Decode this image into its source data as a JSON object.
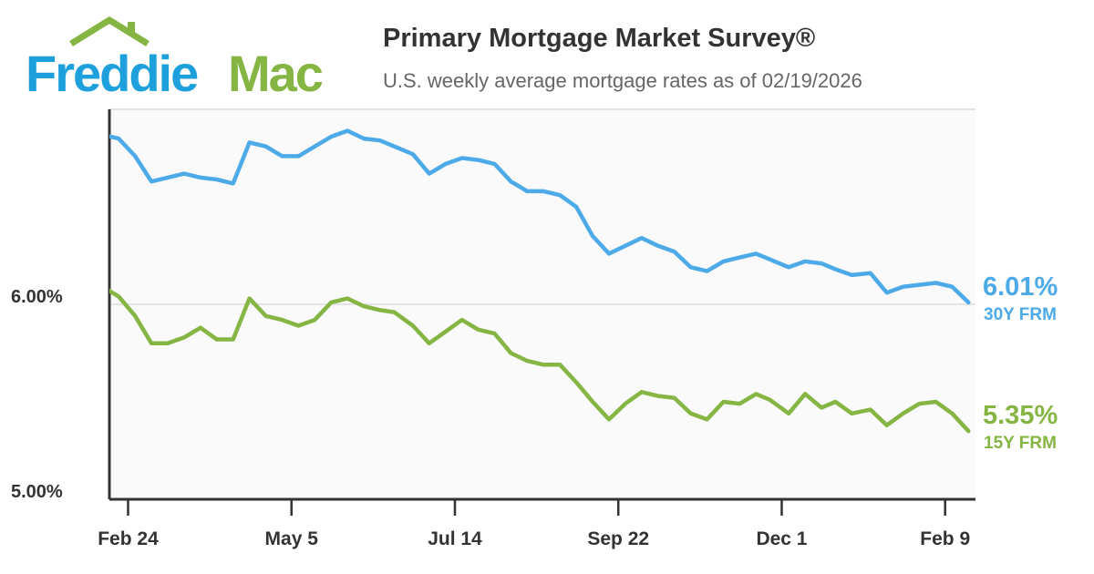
{
  "logo": {
    "text_part1": "Freddie",
    "text_part2": "Mac"
  },
  "header": {
    "title": "Primary Mortgage Market Survey®",
    "subtitle": "U.S. weekly average mortgage rates as of 02/19/2026"
  },
  "chart_data": {
    "type": "line",
    "title": "Primary Mortgage Market Survey®",
    "subtitle": "U.S. weekly average mortgage rates as of 02/19/2026",
    "xlim": [
      "2025-02-16",
      "2026-02-22"
    ],
    "ylim": [
      5.0,
      7.0
    ],
    "yticks": [
      {
        "value": 5.0,
        "label": "5.00%"
      },
      {
        "value": 6.0,
        "label": "6.00%"
      }
    ],
    "xticks": [
      {
        "date": "2025-02-24",
        "label": "Feb 24"
      },
      {
        "date": "2025-05-05",
        "label": "May 5"
      },
      {
        "date": "2025-07-14",
        "label": "Jul 14"
      },
      {
        "date": "2025-09-22",
        "label": "Sep 22"
      },
      {
        "date": "2025-12-01",
        "label": "Dec 1"
      },
      {
        "date": "2026-02-09",
        "label": "Feb 9"
      }
    ],
    "grid": "horizontal",
    "x": [
      "2025-02-13",
      "2025-02-20",
      "2025-02-27",
      "2025-03-06",
      "2025-03-13",
      "2025-03-20",
      "2025-03-27",
      "2025-04-03",
      "2025-04-10",
      "2025-04-17",
      "2025-04-24",
      "2025-05-01",
      "2025-05-08",
      "2025-05-15",
      "2025-05-22",
      "2025-05-29",
      "2025-06-05",
      "2025-06-12",
      "2025-06-18",
      "2025-06-26",
      "2025-07-03",
      "2025-07-10",
      "2025-07-17",
      "2025-07-24",
      "2025-07-31",
      "2025-08-07",
      "2025-08-14",
      "2025-08-21",
      "2025-08-28",
      "2025-09-04",
      "2025-09-11",
      "2025-09-18",
      "2025-09-25",
      "2025-10-02",
      "2025-10-09",
      "2025-10-16",
      "2025-10-23",
      "2025-10-30",
      "2025-11-06",
      "2025-11-13",
      "2025-11-20",
      "2025-11-26",
      "2025-12-04",
      "2025-12-11",
      "2025-12-18",
      "2025-12-24",
      "2025-12-31",
      "2026-01-08",
      "2026-01-15",
      "2026-01-22",
      "2026-01-29",
      "2026-02-05",
      "2026-02-12",
      "2026-02-19"
    ],
    "series": [
      {
        "name": "30Y FRM",
        "color": "#4DAAE8",
        "last_label": "6.01%",
        "values": [
          6.87,
          6.85,
          6.76,
          6.63,
          6.65,
          6.67,
          6.65,
          6.64,
          6.62,
          6.83,
          6.81,
          6.76,
          6.76,
          6.81,
          6.86,
          6.89,
          6.85,
          6.84,
          6.81,
          6.77,
          6.67,
          6.72,
          6.75,
          6.74,
          6.72,
          6.63,
          6.58,
          6.58,
          6.56,
          6.5,
          6.35,
          6.26,
          6.3,
          6.34,
          6.3,
          6.27,
          6.19,
          6.17,
          6.22,
          6.24,
          6.26,
          6.23,
          6.19,
          6.22,
          6.21,
          6.18,
          6.15,
          6.16,
          6.06,
          6.09,
          6.1,
          6.11,
          6.09,
          6.01
        ]
      },
      {
        "name": "15Y FRM",
        "color": "#85B543",
        "last_label": "5.35%",
        "values": [
          6.09,
          6.04,
          5.94,
          5.8,
          5.8,
          5.83,
          5.88,
          5.82,
          5.82,
          6.03,
          5.94,
          5.92,
          5.89,
          5.92,
          6.01,
          6.03,
          5.99,
          5.97,
          5.96,
          5.89,
          5.8,
          5.86,
          5.92,
          5.87,
          5.85,
          5.75,
          5.71,
          5.69,
          5.69,
          5.6,
          5.5,
          5.41,
          5.49,
          5.55,
          5.53,
          5.52,
          5.44,
          5.41,
          5.5,
          5.49,
          5.54,
          5.51,
          5.44,
          5.54,
          5.47,
          5.5,
          5.44,
          5.46,
          5.38,
          5.44,
          5.49,
          5.5,
          5.44,
          5.35
        ]
      }
    ]
  }
}
